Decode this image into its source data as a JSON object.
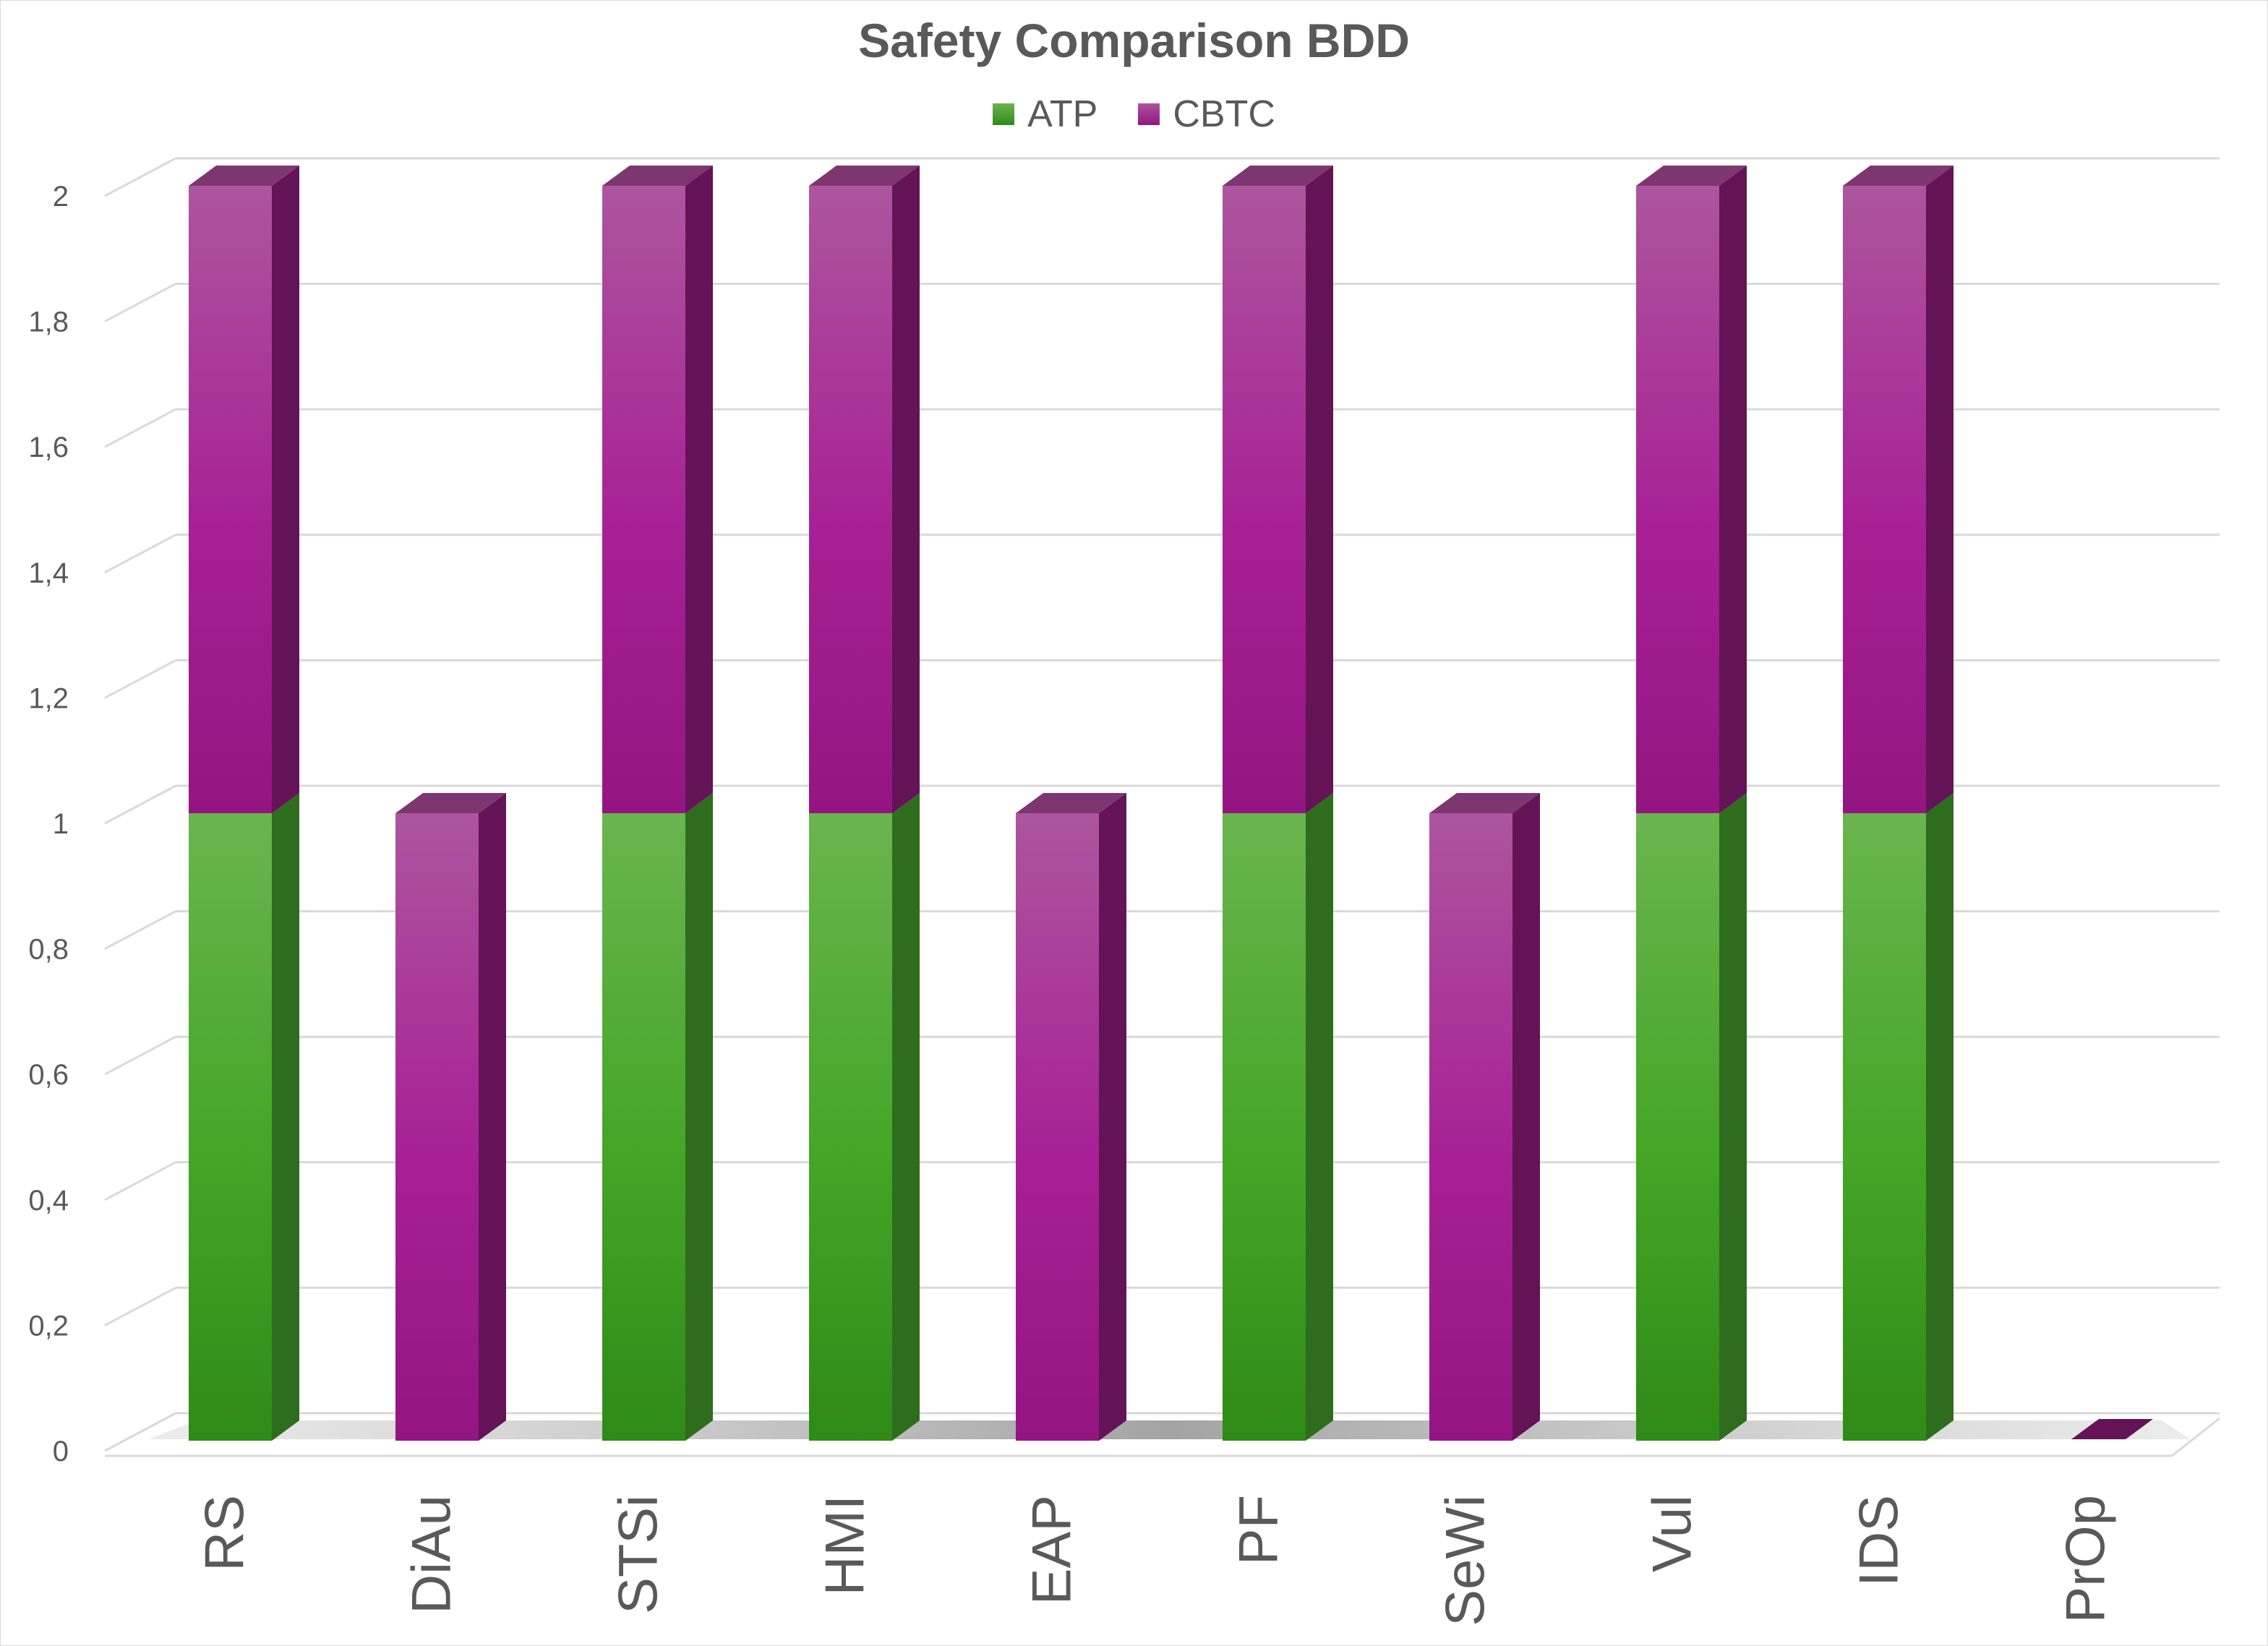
{
  "chart_data": {
    "type": "bar",
    "stacked": true,
    "style": "3d",
    "title": "Safety Comparison BDD",
    "xlabel": "",
    "ylabel": "",
    "categories": [
      "RS",
      "DiAu",
      "STSi",
      "HMI",
      "EAP",
      "PF",
      "SeWi",
      "Vul",
      "IDS",
      "PrOp"
    ],
    "series": [
      {
        "name": "ATP",
        "values": [
          1,
          0,
          1,
          1,
          0,
          1,
          0,
          1,
          1,
          0
        ]
      },
      {
        "name": "CBTC",
        "values": [
          1,
          1,
          1,
          1,
          1,
          1,
          1,
          1,
          1,
          0
        ]
      }
    ],
    "ylim": [
      0,
      2
    ],
    "yticks": [
      "0",
      "0,2",
      "0,4",
      "0,6",
      "0,8",
      "1",
      "1,2",
      "1,4",
      "1,6",
      "1,8",
      "2"
    ],
    "grid": true,
    "legend_position": "top",
    "colors": {
      "ATP": {
        "light": "#6ab54f",
        "mid": "#44a526",
        "dark": "#2f8a17",
        "side": "#2e6c1e",
        "top": "#3e7e2c"
      },
      "CBTC": {
        "light": "#ad559e",
        "mid": "#a72095",
        "dark": "#941581",
        "side": "#631356",
        "top": "#7d3670"
      },
      "gridline": "#d9d9d9",
      "text": "#595959"
    }
  }
}
